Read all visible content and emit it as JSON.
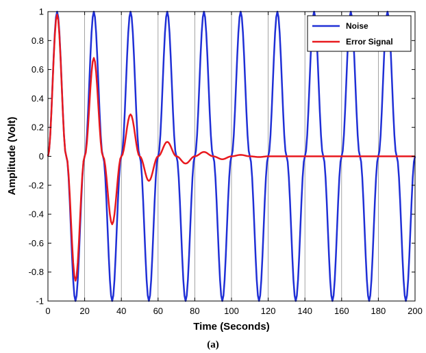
{
  "caption": "(a)",
  "chart_data": {
    "type": "line",
    "xlabel": "Time (Seconds)",
    "ylabel": "Amplitude (Volt)",
    "xlim": [
      0,
      200
    ],
    "ylim": [
      -1,
      1
    ],
    "xticks": [
      0,
      20,
      40,
      60,
      80,
      100,
      120,
      140,
      160,
      180,
      200
    ],
    "yticks": [
      -1,
      -0.8,
      -0.6,
      -0.4,
      -0.2,
      0,
      0.2,
      0.4,
      0.6,
      0.8,
      1
    ],
    "grid": "vertical",
    "legend_position": "top-right",
    "colors": {
      "Noise": "#1f2fd6",
      "Error Signal": "#e8191e"
    },
    "series": [
      {
        "name": "Noise",
        "x": [
          0,
          5,
          10,
          15,
          20,
          25,
          30,
          35,
          40,
          45,
          50,
          55,
          60,
          65,
          70,
          75,
          80,
          85,
          90,
          95,
          100,
          105,
          110,
          115,
          120,
          125,
          130,
          135,
          140,
          145,
          150,
          155,
          160,
          165,
          170,
          175,
          180,
          185,
          190,
          195,
          200
        ],
        "values": [
          0,
          1,
          0,
          -1,
          0,
          1,
          0,
          -1,
          0,
          1,
          0,
          -1,
          0,
          1,
          0,
          -1,
          0,
          1,
          0,
          -1,
          0,
          1,
          0,
          -1,
          0,
          1,
          0,
          -1,
          0,
          1,
          0,
          -1,
          0,
          1,
          0,
          -1,
          0,
          1,
          0,
          -1,
          0
        ]
      },
      {
        "name": "Error Signal",
        "x": [
          0,
          5,
          10,
          15,
          20,
          25,
          30,
          35,
          40,
          45,
          50,
          55,
          60,
          65,
          70,
          75,
          80,
          85,
          90,
          95,
          100,
          105,
          110,
          115,
          120,
          130,
          140,
          150,
          160,
          170,
          180,
          190,
          200
        ],
        "values": [
          0,
          0.98,
          0,
          -0.86,
          0,
          0.68,
          0,
          -0.47,
          0,
          0.29,
          0,
          -0.17,
          0,
          0.1,
          0,
          -0.05,
          0,
          0.03,
          0,
          -0.02,
          0,
          0.01,
          0,
          -0.005,
          0,
          0,
          0,
          0,
          0,
          0,
          0,
          0,
          0
        ]
      }
    ]
  }
}
